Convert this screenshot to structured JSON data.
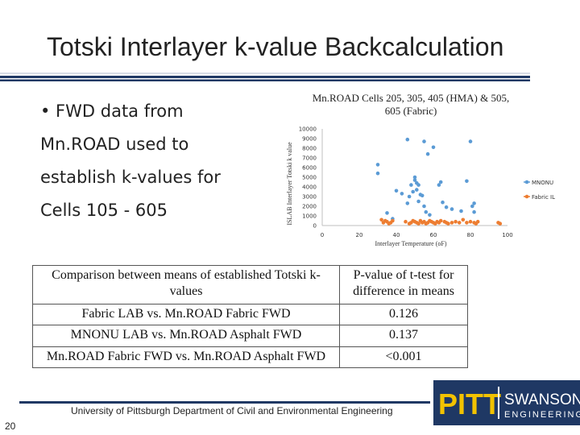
{
  "slide": {
    "title": "Totski Interlayer k-value Backcalculation",
    "bullet": "• FWD data from Mn.ROAD used to establish k-values for Cells 105 - 605",
    "page_number": "20",
    "footer": "University of Pittsburgh Department of Civil and Environmental Engineering",
    "logo": {
      "left": "PITT",
      "right_top": "SWANSON",
      "right_bottom": "ENGINEERING"
    }
  },
  "colors": {
    "mnonu": "#5b9bd5",
    "fabric": "#ed7d31",
    "navy": "#1f3864",
    "pitt_gold": "#f2c200"
  },
  "table": {
    "headers": [
      "Comparison between means of established Totski k-values",
      "P-value of t-test for difference in means"
    ],
    "rows": [
      [
        "Fabric LAB vs. Mn.ROAD Fabric FWD",
        "0.126"
      ],
      [
        "MNONU LAB vs. Mn.ROAD Asphalt FWD",
        "0.137"
      ],
      [
        "Mn.ROAD Fabric FWD vs. Mn.ROAD Asphalt FWD",
        "<0.001"
      ]
    ]
  },
  "chart_data": {
    "type": "scatter",
    "title": "Mn.ROAD Cells 205, 305, 405 (HMA) & 505, 605 (Fabric)",
    "xlabel": "Interlayer Temperature (oF)",
    "ylabel": "ISLAB Interlayer Totski k value",
    "xlim": [
      0,
      100
    ],
    "ylim": [
      0,
      10000
    ],
    "x_ticks": [
      0,
      20,
      40,
      60,
      80,
      100
    ],
    "y_ticks": [
      0,
      1000,
      2000,
      3000,
      4000,
      5000,
      6000,
      7000,
      8000,
      9000,
      10000
    ],
    "grid": false,
    "legend": "right",
    "series": [
      {
        "name": "MNONU",
        "points": [
          [
            30,
            6300
          ],
          [
            30,
            5400
          ],
          [
            35,
            1300
          ],
          [
            38,
            700
          ],
          [
            40,
            3600
          ],
          [
            43,
            3300
          ],
          [
            46,
            8900
          ],
          [
            46,
            2300
          ],
          [
            47,
            3000
          ],
          [
            48,
            4200
          ],
          [
            49,
            3500
          ],
          [
            50,
            5000
          ],
          [
            50,
            4700
          ],
          [
            51,
            4400
          ],
          [
            51,
            3700
          ],
          [
            52,
            4200
          ],
          [
            52,
            2500
          ],
          [
            53,
            3200
          ],
          [
            54,
            3100
          ],
          [
            55,
            8700
          ],
          [
            55,
            2000
          ],
          [
            56,
            1400
          ],
          [
            57,
            7400
          ],
          [
            58,
            1100
          ],
          [
            60,
            8100
          ],
          [
            63,
            4200
          ],
          [
            64,
            4500
          ],
          [
            65,
            2400
          ],
          [
            67,
            1900
          ],
          [
            70,
            1700
          ],
          [
            75,
            1500
          ],
          [
            78,
            4600
          ],
          [
            80,
            8700
          ],
          [
            81,
            2000
          ],
          [
            82,
            2300
          ],
          [
            82,
            1400
          ]
        ]
      },
      {
        "name": "Fabric IL",
        "points": [
          [
            32,
            600
          ],
          [
            33,
            300
          ],
          [
            34,
            500
          ],
          [
            35,
            400
          ],
          [
            36,
            200
          ],
          [
            37,
            300
          ],
          [
            38,
            500
          ],
          [
            45,
            400
          ],
          [
            47,
            200
          ],
          [
            48,
            300
          ],
          [
            49,
            500
          ],
          [
            50,
            400
          ],
          [
            51,
            300
          ],
          [
            52,
            200
          ],
          [
            53,
            500
          ],
          [
            54,
            300
          ],
          [
            55,
            400
          ],
          [
            56,
            200
          ],
          [
            57,
            300
          ],
          [
            58,
            500
          ],
          [
            59,
            400
          ],
          [
            60,
            300
          ],
          [
            61,
            200
          ],
          [
            62,
            400
          ],
          [
            63,
            300
          ],
          [
            64,
            500
          ],
          [
            66,
            400
          ],
          [
            67,
            300
          ],
          [
            68,
            200
          ],
          [
            70,
            300
          ],
          [
            72,
            400
          ],
          [
            74,
            300
          ],
          [
            76,
            600
          ],
          [
            78,
            300
          ],
          [
            80,
            400
          ],
          [
            82,
            300
          ],
          [
            83,
            200
          ],
          [
            84,
            400
          ],
          [
            95,
            300
          ],
          [
            96,
            200
          ]
        ]
      }
    ]
  }
}
